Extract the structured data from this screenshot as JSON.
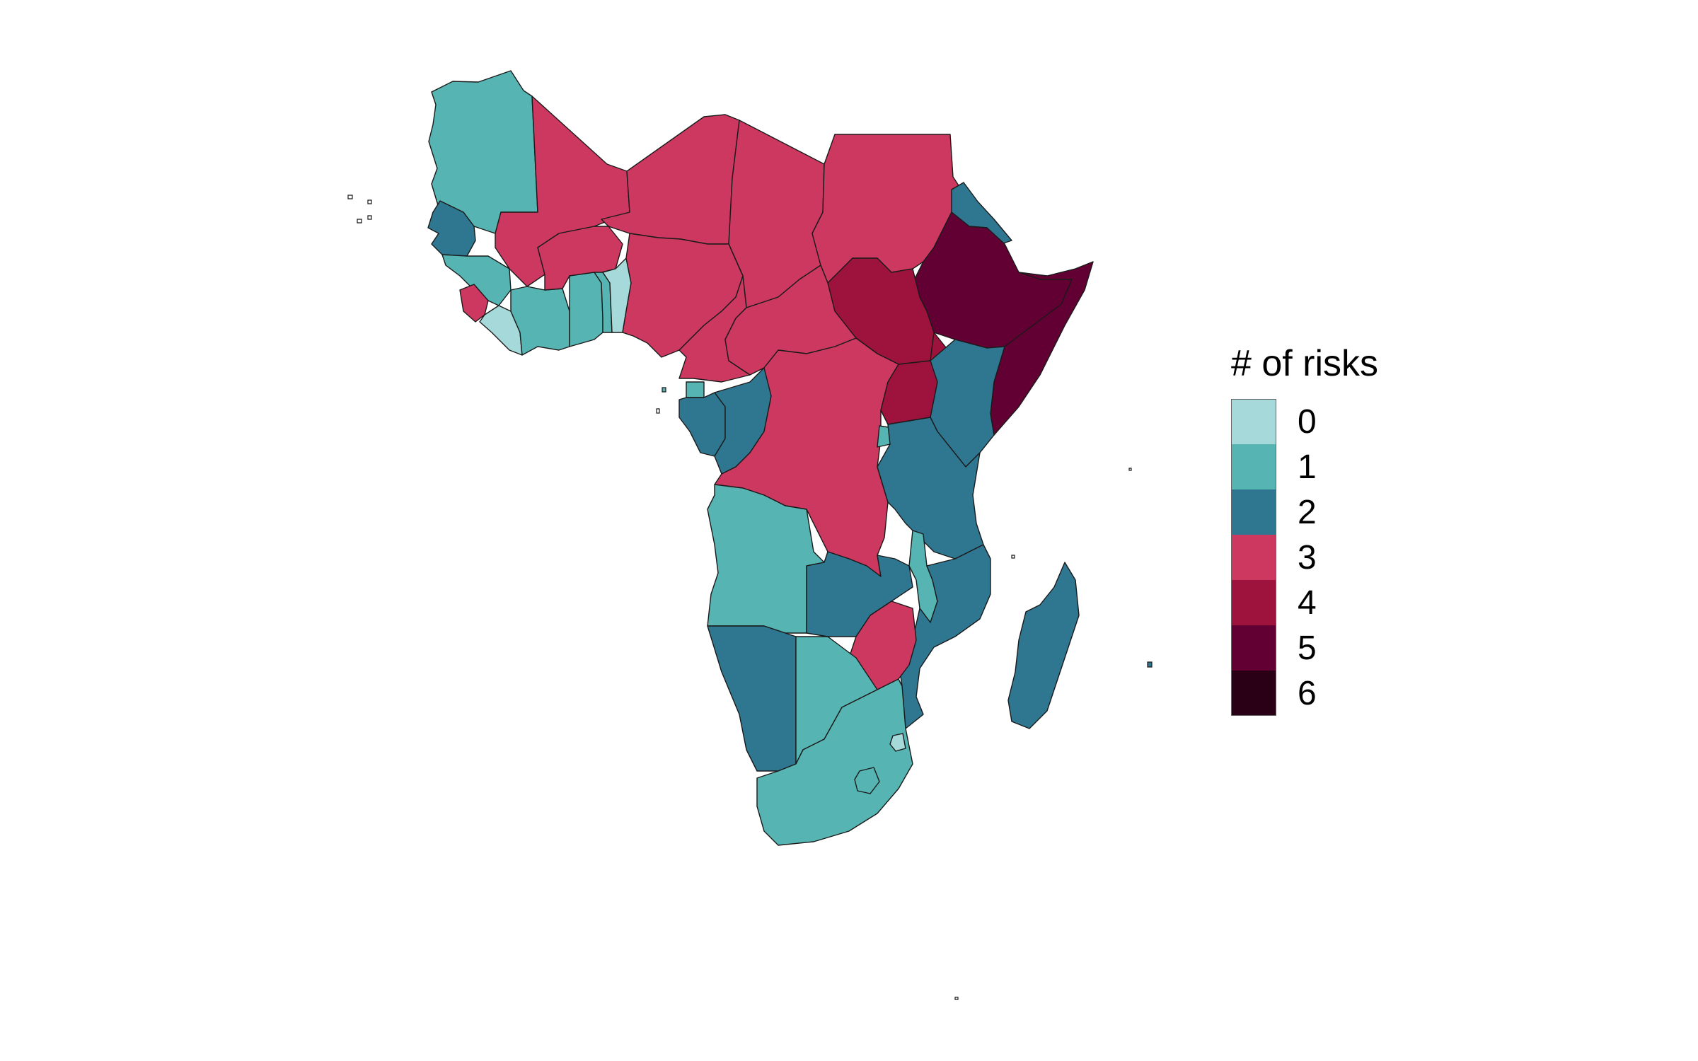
{
  "legend": {
    "title": "# of risks",
    "items": [
      {
        "label": "0",
        "color": "#a6d9d9"
      },
      {
        "label": "1",
        "color": "#56b4b3"
      },
      {
        "label": "2",
        "color": "#2f7690"
      },
      {
        "label": "3",
        "color": "#cc3860"
      },
      {
        "label": "4",
        "color": "#9e133d"
      },
      {
        "label": "5",
        "color": "#630033"
      },
      {
        "label": "6",
        "color": "#2a0016"
      }
    ]
  },
  "regions": [
    {
      "name": "Mauritania",
      "risks": 1
    },
    {
      "name": "Mali",
      "risks": 3
    },
    {
      "name": "Niger",
      "risks": 3
    },
    {
      "name": "Chad",
      "risks": 3
    },
    {
      "name": "Sudan",
      "risks": 3
    },
    {
      "name": "Eritrea",
      "risks": 2
    },
    {
      "name": "Ethiopia",
      "risks": 5
    },
    {
      "name": "Somalia",
      "risks": 5
    },
    {
      "name": "South Sudan",
      "risks": 4
    },
    {
      "name": "Senegal",
      "risks": 2
    },
    {
      "name": "Guinea",
      "risks": 1
    },
    {
      "name": "Sierra Leone",
      "risks": 3
    },
    {
      "name": "Liberia",
      "risks": 0
    },
    {
      "name": "Cote d'Ivoire",
      "risks": 1
    },
    {
      "name": "Burkina Faso",
      "risks": 3
    },
    {
      "name": "Ghana",
      "risks": 1
    },
    {
      "name": "Togo",
      "risks": 1
    },
    {
      "name": "Benin",
      "risks": 0
    },
    {
      "name": "Nigeria",
      "risks": 3
    },
    {
      "name": "Cameroon",
      "risks": 3
    },
    {
      "name": "Central African Republic",
      "risks": 3
    },
    {
      "name": "Equatorial Guinea",
      "risks": 1
    },
    {
      "name": "Gabon",
      "risks": 2
    },
    {
      "name": "Republic of Congo",
      "risks": 2
    },
    {
      "name": "DR Congo",
      "risks": 3
    },
    {
      "name": "Uganda",
      "risks": 4
    },
    {
      "name": "Kenya",
      "risks": 2
    },
    {
      "name": "Rwanda",
      "risks": 1
    },
    {
      "name": "Tanzania",
      "risks": 2
    },
    {
      "name": "Angola",
      "risks": 1
    },
    {
      "name": "Zambia",
      "risks": 2
    },
    {
      "name": "Malawi",
      "risks": 1
    },
    {
      "name": "Mozambique",
      "risks": 2
    },
    {
      "name": "Zimbabwe",
      "risks": 3
    },
    {
      "name": "Namibia",
      "risks": 2
    },
    {
      "name": "Botswana",
      "risks": 1
    },
    {
      "name": "South Africa",
      "risks": 1
    },
    {
      "name": "Eswatini",
      "risks": 0
    },
    {
      "name": "Lesotho",
      "risks": 1
    },
    {
      "name": "Madagascar",
      "risks": 2
    }
  ]
}
